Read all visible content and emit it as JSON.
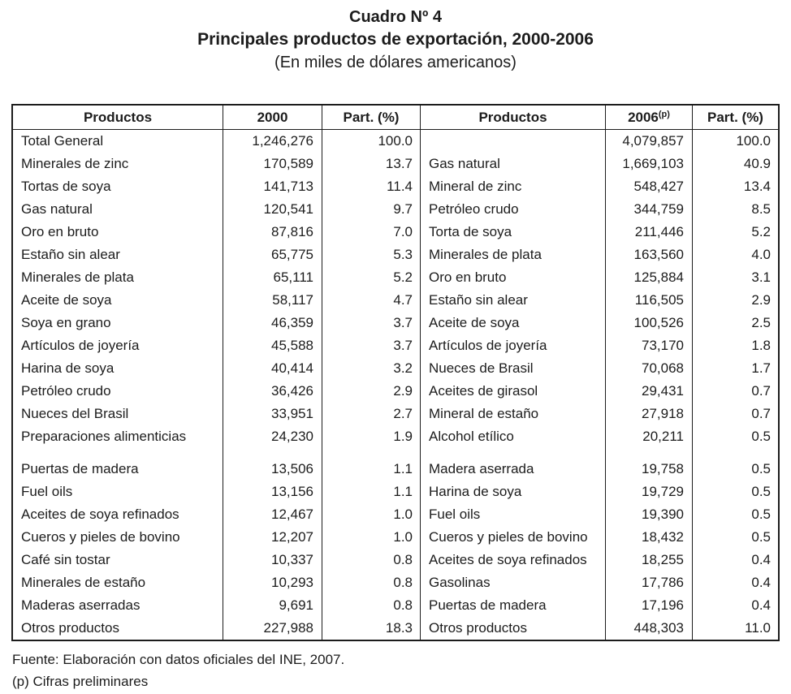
{
  "title": {
    "line1": "Cuadro Nº 4",
    "line2": "Principales productos de exportación, 2000-2006",
    "line3": "(En miles de dólares americanos)"
  },
  "table": {
    "left": {
      "headers": {
        "product": "Productos",
        "year": "2000",
        "share": "Part. (%)"
      },
      "group1": [
        {
          "product": "Total General",
          "value": "1,246,276",
          "share": "100.0"
        },
        {
          "product": "Minerales de zinc",
          "value": "170,589",
          "share": "13.7"
        },
        {
          "product": "Tortas de soya",
          "value": "141,713",
          "share": "11.4"
        },
        {
          "product": "Gas natural",
          "value": "120,541",
          "share": "9.7"
        },
        {
          "product": "Oro en bruto",
          "value": "87,816",
          "share": "7.0"
        },
        {
          "product": "Estaño sin alear",
          "value": "65,775",
          "share": "5.3"
        },
        {
          "product": "Minerales de plata",
          "value": "65,111",
          "share": "5.2"
        },
        {
          "product": "Aceite de soya",
          "value": "58,117",
          "share": "4.7"
        },
        {
          "product": "Soya en grano",
          "value": "46,359",
          "share": "3.7"
        },
        {
          "product": "Artículos de joyería",
          "value": "45,588",
          "share": "3.7"
        },
        {
          "product": "Harina de soya",
          "value": "40,414",
          "share": "3.2"
        },
        {
          "product": "Petróleo crudo",
          "value": "36,426",
          "share": "2.9"
        },
        {
          "product": "Nueces del Brasil",
          "value": "33,951",
          "share": "2.7"
        },
        {
          "product": "Preparaciones alimenticias",
          "value": "24,230",
          "share": "1.9"
        }
      ],
      "group2": [
        {
          "product": "Puertas de madera",
          "value": "13,506",
          "share": "1.1"
        },
        {
          "product": "Fuel oils",
          "value": "13,156",
          "share": "1.1"
        },
        {
          "product": "Aceites de soya refinados",
          "value": "12,467",
          "share": "1.0"
        },
        {
          "product": "Cueros y pieles de bovino",
          "value": "12,207",
          "share": "1.0"
        },
        {
          "product": "Café sin tostar",
          "value": "10,337",
          "share": "0.8"
        },
        {
          "product": "Minerales de estaño",
          "value": "10,293",
          "share": "0.8"
        },
        {
          "product": "Maderas aserradas",
          "value": "9,691",
          "share": "0.8"
        },
        {
          "product": "Otros productos",
          "value": "227,988",
          "share": "18.3"
        }
      ]
    },
    "right": {
      "headers": {
        "product": "Productos",
        "year": "2006",
        "year_sup": "(p)",
        "share": "Part. (%)"
      },
      "group1": [
        {
          "product": "",
          "value": "4,079,857",
          "share": "100.0"
        },
        {
          "product": "Gas natural",
          "value": "1,669,103",
          "share": "40.9"
        },
        {
          "product": "Mineral de zinc",
          "value": "548,427",
          "share": "13.4"
        },
        {
          "product": "Petróleo crudo",
          "value": "344,759",
          "share": "8.5"
        },
        {
          "product": "Torta de soya",
          "value": "211,446",
          "share": "5.2"
        },
        {
          "product": "Minerales de plata",
          "value": "163,560",
          "share": "4.0"
        },
        {
          "product": "Oro en bruto",
          "value": "125,884",
          "share": "3.1"
        },
        {
          "product": "Estaño sin alear",
          "value": "116,505",
          "share": "2.9"
        },
        {
          "product": "Aceite de soya",
          "value": "100,526",
          "share": "2.5"
        },
        {
          "product": "Artículos de joyería",
          "value": "73,170",
          "share": "1.8"
        },
        {
          "product": "Nueces de Brasil",
          "value": "70,068",
          "share": "1.7"
        },
        {
          "product": "Aceites de girasol",
          "value": "29,431",
          "share": "0.7"
        },
        {
          "product": "Mineral de estaño",
          "value": "27,918",
          "share": "0.7"
        },
        {
          "product": "Alcohol etílico",
          "value": "20,211",
          "share": "0.5"
        }
      ],
      "group2": [
        {
          "product": "Madera aserrada",
          "value": "19,758",
          "share": "0.5"
        },
        {
          "product": "Harina de soya",
          "value": "19,729",
          "share": "0.5"
        },
        {
          "product": "Fuel oils",
          "value": "19,390",
          "share": "0.5"
        },
        {
          "product": "Cueros y pieles de bovino",
          "value": "18,432",
          "share": "0.5"
        },
        {
          "product": "Aceites de soya refinados",
          "value": "18,255",
          "share": "0.4"
        },
        {
          "product": "Gasolinas",
          "value": "17,786",
          "share": "0.4"
        },
        {
          "product": "Puertas de madera",
          "value": "17,196",
          "share": "0.4"
        },
        {
          "product": "Otros productos",
          "value": "448,303",
          "share": "11.0"
        }
      ]
    }
  },
  "footer": {
    "source": "Fuente: Elaboración con datos oficiales del INE, 2007.",
    "note": "(p) Cifras preliminares"
  }
}
